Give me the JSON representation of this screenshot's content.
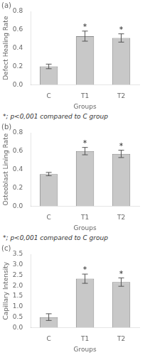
{
  "chart_data": [
    {
      "type": "bar",
      "title": "(a)",
      "xlabel": "Groups",
      "ylabel": "Defect Healing Rate",
      "categories": [
        "C",
        "T1",
        "T2"
      ],
      "values": [
        0.2,
        0.53,
        0.51
      ],
      "errors": [
        0.025,
        0.055,
        0.045
      ],
      "color": "#c8c8c8",
      "ylim": [
        0.0,
        0.8
      ],
      "yticks": [
        0.0,
        0.2,
        0.4,
        0.6,
        0.8
      ],
      "grid": false,
      "annotations": [
        {
          "text": "*",
          "category": "T1"
        },
        {
          "text": "*",
          "category": "T2"
        },
        {
          "text": "*; p<0,001 compared to C group"
        }
      ]
    },
    {
      "type": "bar",
      "title": "(b)",
      "xlabel": "Groups",
      "ylabel": "Osteoblast Lining Rate",
      "categories": [
        "C",
        "T1",
        "T2"
      ],
      "values": [
        0.35,
        0.6,
        0.57
      ],
      "errors": [
        0.018,
        0.04,
        0.04
      ],
      "color": "#c8c8c8",
      "ylim": [
        0.0,
        0.8
      ],
      "yticks": [
        0.0,
        0.2,
        0.4,
        0.6,
        0.8
      ],
      "grid": false,
      "annotations": [
        {
          "text": "*",
          "category": "T1"
        },
        {
          "text": "*",
          "category": "T2"
        },
        {
          "text": "*; p<0,001 compared to C group"
        }
      ]
    },
    {
      "type": "bar",
      "title": "(c)",
      "xlabel": "Groups",
      "ylabel": "Capillary Intensity",
      "categories": [
        "C",
        "T1",
        "T2"
      ],
      "values": [
        0.5,
        2.33,
        2.17
      ],
      "errors": [
        0.16,
        0.22,
        0.2
      ],
      "color": "#c8c8c8",
      "ylim": [
        0.0,
        3.5
      ],
      "yticks": [
        0.0,
        0.5,
        1.0,
        1.5,
        2.0,
        2.5,
        3.0,
        3.5
      ],
      "grid": false,
      "annotations": [
        {
          "text": "*",
          "category": "T1"
        },
        {
          "text": "*",
          "category": "T2"
        }
      ]
    }
  ]
}
